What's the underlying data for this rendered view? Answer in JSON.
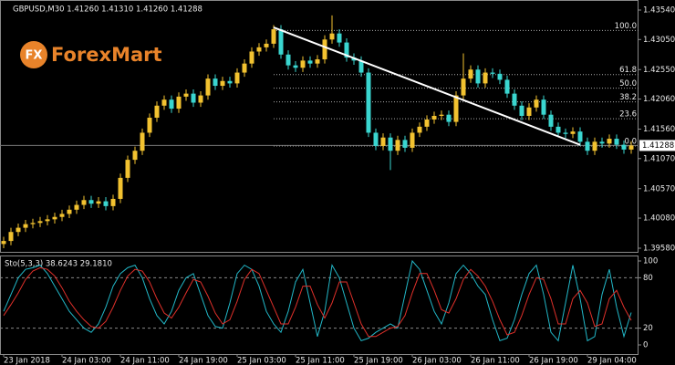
{
  "chart_data": {
    "type": "candlestick",
    "title": "GBPUSD,M30  1.41260 1.41310 1.41260 1.41288",
    "watermark": {
      "icon": "FX",
      "text": "ForexMart"
    },
    "categories": [
      "23 Jan 2018",
      null,
      null,
      null,
      null,
      null,
      null,
      null,
      "24 Jan 03:00",
      null,
      null,
      null,
      null,
      null,
      null,
      null,
      "24 Jan 11:00",
      null,
      null,
      null,
      null,
      null,
      null,
      null,
      "24 Jan 19:00",
      null,
      null,
      null,
      null,
      null,
      null,
      null,
      "25 Jan 03:00",
      null,
      null,
      null,
      null,
      null,
      null,
      null,
      "25 Jan 11:00",
      null,
      null,
      null,
      null,
      null,
      null,
      null,
      "25 Jan 19:00",
      null,
      null,
      null,
      null,
      null,
      null,
      null,
      "26 Jan 03:00",
      null,
      null,
      null,
      null,
      null,
      null,
      null,
      "26 Jan 11:00",
      null,
      null,
      null,
      null,
      null,
      null,
      null,
      "26 Jan 19:00",
      null,
      null,
      null,
      null,
      null,
      null,
      null,
      "29 Jan 04:00",
      null,
      null,
      null,
      null,
      null,
      null
    ],
    "open": [
      1.3965,
      1.397,
      1.3985,
      1.3992,
      1.3998,
      1.4,
      1.4003,
      1.4006,
      1.401,
      1.4015,
      1.4022,
      1.403,
      1.4038,
      1.4032,
      1.4036,
      1.4028,
      1.404,
      1.4075,
      1.4105,
      1.412,
      1.415,
      1.4175,
      1.4195,
      1.4205,
      1.419,
      1.421,
      1.4215,
      1.42,
      1.4212,
      1.424,
      1.4228,
      1.4236,
      1.4232,
      1.425,
      1.4265,
      1.4285,
      1.4292,
      1.4298,
      1.4322,
      1.428,
      1.4262,
      1.4258,
      1.427,
      1.4265,
      1.4272,
      1.4305,
      1.4315,
      1.43,
      1.4275,
      1.427,
      1.425,
      1.415,
      1.4128,
      1.4142,
      1.412,
      1.4138,
      1.4125,
      1.415,
      1.416,
      1.4172,
      1.4178,
      1.418,
      1.4168,
      1.4212,
      1.424,
      1.4255,
      1.4232,
      1.425,
      1.4248,
      1.4238,
      1.4215,
      1.4195,
      1.4178,
      1.4192,
      1.4205,
      1.418,
      1.416,
      1.415,
      1.4148,
      1.4152,
      1.4135,
      1.412,
      1.4135,
      1.4132,
      1.414,
      1.413,
      1.4122
    ],
    "high": [
      1.3977,
      1.3992,
      1.3999,
      1.4005,
      1.4007,
      1.401,
      1.4013,
      1.4017,
      1.4022,
      1.4029,
      1.4037,
      1.4045,
      1.4045,
      1.4043,
      1.4043,
      1.4047,
      1.4082,
      1.4112,
      1.4127,
      1.4157,
      1.4182,
      1.4202,
      1.4212,
      1.4212,
      1.4217,
      1.4222,
      1.4222,
      1.4219,
      1.4247,
      1.4247,
      1.4243,
      1.4243,
      1.4257,
      1.4272,
      1.4292,
      1.4299,
      1.4305,
      1.4329,
      1.4329,
      1.4287,
      1.4269,
      1.4277,
      1.4277,
      1.4279,
      1.4312,
      1.4345,
      1.4322,
      1.4307,
      1.4282,
      1.4277,
      1.4257,
      1.4157,
      1.4149,
      1.4149,
      1.4145,
      1.4145,
      1.4157,
      1.4167,
      1.4179,
      1.4185,
      1.4187,
      1.4187,
      1.4219,
      1.4282,
      1.4262,
      1.4262,
      1.4257,
      1.4257,
      1.4255,
      1.4245,
      1.4222,
      1.4202,
      1.4199,
      1.4212,
      1.4212,
      1.4187,
      1.4167,
      1.4157,
      1.4159,
      1.4159,
      1.4142,
      1.4142,
      1.4142,
      1.4147,
      1.4147,
      1.4137,
      1.4136
    ],
    "low": [
      1.3958,
      1.3963,
      1.3978,
      1.3985,
      1.3991,
      1.3993,
      1.3996,
      1.3999,
      1.4003,
      1.4008,
      1.4015,
      1.4023,
      1.4025,
      1.4025,
      1.4021,
      1.4021,
      1.4033,
      1.4068,
      1.4098,
      1.4113,
      1.4143,
      1.4168,
      1.4188,
      1.4183,
      1.4183,
      1.4203,
      1.4193,
      1.4193,
      1.4205,
      1.4221,
      1.4221,
      1.4225,
      1.4225,
      1.4243,
      1.4258,
      1.4278,
      1.4285,
      1.4291,
      1.4273,
      1.4255,
      1.4251,
      1.4251,
      1.4258,
      1.4258,
      1.4265,
      1.4298,
      1.4293,
      1.4268,
      1.4263,
      1.4243,
      1.4143,
      1.4121,
      1.4121,
      1.4088,
      1.4113,
      1.4118,
      1.4118,
      1.4143,
      1.4153,
      1.4165,
      1.4171,
      1.4161,
      1.4161,
      1.4205,
      1.4233,
      1.4225,
      1.4225,
      1.4241,
      1.4231,
      1.4208,
      1.4188,
      1.4171,
      1.4171,
      1.4185,
      1.4173,
      1.4153,
      1.4143,
      1.4141,
      1.4141,
      1.4128,
      1.4113,
      1.4113,
      1.4125,
      1.4125,
      1.4123,
      1.4115,
      1.4115
    ],
    "close": [
      1.397,
      1.3985,
      1.3992,
      1.3998,
      1.4,
      1.4003,
      1.4006,
      1.401,
      1.4015,
      1.4022,
      1.403,
      1.4038,
      1.4032,
      1.4036,
      1.4028,
      1.404,
      1.4075,
      1.4105,
      1.412,
      1.415,
      1.4175,
      1.4195,
      1.4205,
      1.419,
      1.421,
      1.4215,
      1.42,
      1.4212,
      1.424,
      1.4228,
      1.4236,
      1.4232,
      1.425,
      1.4265,
      1.4285,
      1.4292,
      1.4298,
      1.4322,
      1.428,
      1.4262,
      1.4258,
      1.427,
      1.4265,
      1.4272,
      1.4305,
      1.4315,
      1.43,
      1.4275,
      1.427,
      1.425,
      1.415,
      1.4128,
      1.4142,
      1.412,
      1.4138,
      1.4125,
      1.415,
      1.416,
      1.4172,
      1.4178,
      1.418,
      1.4168,
      1.4212,
      1.424,
      1.4255,
      1.4232,
      1.425,
      1.4248,
      1.4238,
      1.4215,
      1.4195,
      1.4178,
      1.4192,
      1.4205,
      1.418,
      1.416,
      1.415,
      1.4148,
      1.4152,
      1.4135,
      1.412,
      1.4135,
      1.4132,
      1.414,
      1.413,
      1.4122,
      1.41288
    ],
    "up_color": "#f2c230",
    "down_color": "#3ad6d0",
    "ylim": [
      1.3958,
      1.4354
    ],
    "yticks": [
      {
        "value": 1.4354,
        "label": "1.43540"
      },
      {
        "value": 1.4305,
        "label": "1.43050"
      },
      {
        "value": 1.4255,
        "label": "1.42550"
      },
      {
        "value": 1.4206,
        "label": "1.42060"
      },
      {
        "value": 1.4156,
        "label": "1.41560"
      },
      {
        "value": 1.4107,
        "label": "1.41070"
      },
      {
        "value": 1.4057,
        "label": "1.40570"
      },
      {
        "value": 1.4008,
        "label": "1.40080"
      },
      {
        "value": 1.3958,
        "label": "1.39580"
      }
    ],
    "last_price": {
      "value": 1.41288,
      "label": "1.41288"
    },
    "trendline": {
      "candles": [
        37,
        79
      ],
      "values": [
        1.4325,
        1.413
      ],
      "color": "#ffffff"
    },
    "fibo": {
      "start": 37,
      "high": 1.432,
      "low": 1.4128,
      "levels": [
        {
          "value": 100,
          "label": "100.0"
        },
        {
          "value": 61.8,
          "label": "61.8"
        },
        {
          "value": 50,
          "label": "50.0"
        },
        {
          "value": 38.2,
          "label": "38.2"
        },
        {
          "value": 23.6,
          "label": "23.6"
        },
        {
          "value": 0,
          "label": "0.0"
        }
      ]
    },
    "indicator": {
      "title": "Sto(5,3,3) 38.6243 29.1810",
      "ylim": [
        0,
        100
      ],
      "yticks": [
        100,
        80,
        20,
        0
      ],
      "levels": [
        80,
        20
      ],
      "main": {
        "color": "#22b8c8",
        "values": [
          40,
          60,
          80,
          90,
          92,
          95,
          85,
          70,
          55,
          40,
          30,
          20,
          15,
          25,
          45,
          70,
          85,
          92,
          95,
          80,
          55,
          35,
          25,
          40,
          65,
          80,
          85,
          60,
          35,
          22,
          20,
          50,
          85,
          95,
          90,
          70,
          40,
          25,
          15,
          40,
          75,
          90,
          50,
          10,
          40,
          95,
          80,
          50,
          20,
          5,
          8,
          15,
          20,
          25,
          20,
          60,
          100,
          90,
          65,
          40,
          25,
          50,
          85,
          95,
          85,
          70,
          60,
          30,
          5,
          8,
          30,
          60,
          85,
          95,
          60,
          15,
          5,
          50,
          95,
          55,
          5,
          10,
          60,
          90,
          45,
          10,
          38.6243
        ]
      },
      "signal": {
        "color": "#e0302a",
        "values": [
          35,
          48,
          62,
          78,
          88,
          92,
          90,
          82,
          68,
          52,
          40,
          30,
          22,
          20,
          28,
          45,
          65,
          82,
          90,
          88,
          75,
          55,
          38,
          32,
          45,
          62,
          78,
          75,
          58,
          38,
          25,
          30,
          52,
          78,
          90,
          85,
          65,
          45,
          25,
          25,
          45,
          70,
          70,
          48,
          32,
          50,
          75,
          75,
          50,
          25,
          10,
          10,
          15,
          20,
          22,
          35,
          62,
          85,
          85,
          65,
          42,
          38,
          55,
          78,
          90,
          82,
          70,
          52,
          30,
          12,
          15,
          35,
          60,
          80,
          78,
          55,
          25,
          25,
          55,
          65,
          50,
          22,
          25,
          55,
          65,
          45,
          29.181
        ]
      }
    }
  }
}
